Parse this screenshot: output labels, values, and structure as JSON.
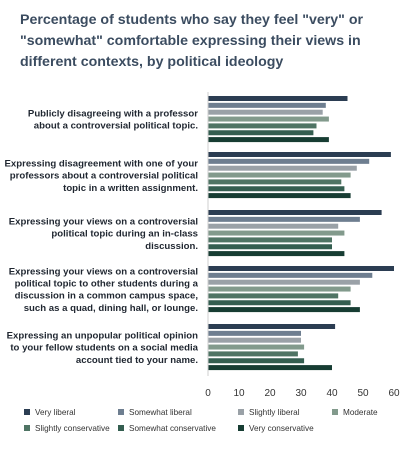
{
  "chart_data": {
    "type": "bar",
    "orientation": "horizontal",
    "title_lines": [
      "Percentage of students who say they feel \"very\" or",
      "\"somewhat\" comfortable expressing their views in",
      "different contexts, by political ideology"
    ],
    "categories": [
      [
        "Publicly disagreeing with a professor",
        "about a controversial political topic."
      ],
      [
        "Expressing disagreement with one of your",
        "professors about a controversial political",
        "topic in a written assignment."
      ],
      [
        "Expressing your views on a controversial",
        "political topic during an in-class",
        "discussion."
      ],
      [
        "Expressing your views on a controversial",
        "political topic to other students during a",
        "discussion in a common campus space,",
        "such as a quad, dining hall, or lounge."
      ],
      [
        "Expressing an unpopular political opinion",
        "to your fellow students on a social media",
        "account tied to your name."
      ]
    ],
    "series": [
      {
        "name": "Very liberal",
        "color": "#2b3d52",
        "values": [
          45,
          59,
          56,
          60,
          41
        ]
      },
      {
        "name": "Somewhat liberal",
        "color": "#6e7e90",
        "values": [
          38,
          52,
          49,
          53,
          30
        ]
      },
      {
        "name": "Slightly liberal",
        "color": "#9aa1a7",
        "values": [
          37,
          48,
          42,
          49,
          30
        ]
      },
      {
        "name": "Moderate",
        "color": "#829a8c",
        "values": [
          39,
          46,
          44,
          46,
          31
        ]
      },
      {
        "name": "Slightly conservative",
        "color": "#4f7464",
        "values": [
          35,
          43,
          40,
          42,
          29
        ]
      },
      {
        "name": "Somewhat conservative",
        "color": "#345e50",
        "values": [
          34,
          44,
          40,
          46,
          31
        ]
      },
      {
        "name": "Very conservative",
        "color": "#173d33",
        "values": [
          39,
          46,
          44,
          49,
          40
        ]
      }
    ],
    "xlim": [
      0,
      60
    ],
    "xticks": [
      0,
      10,
      20,
      30,
      40,
      50,
      60
    ],
    "grid": false,
    "legend_position": "bottom"
  }
}
